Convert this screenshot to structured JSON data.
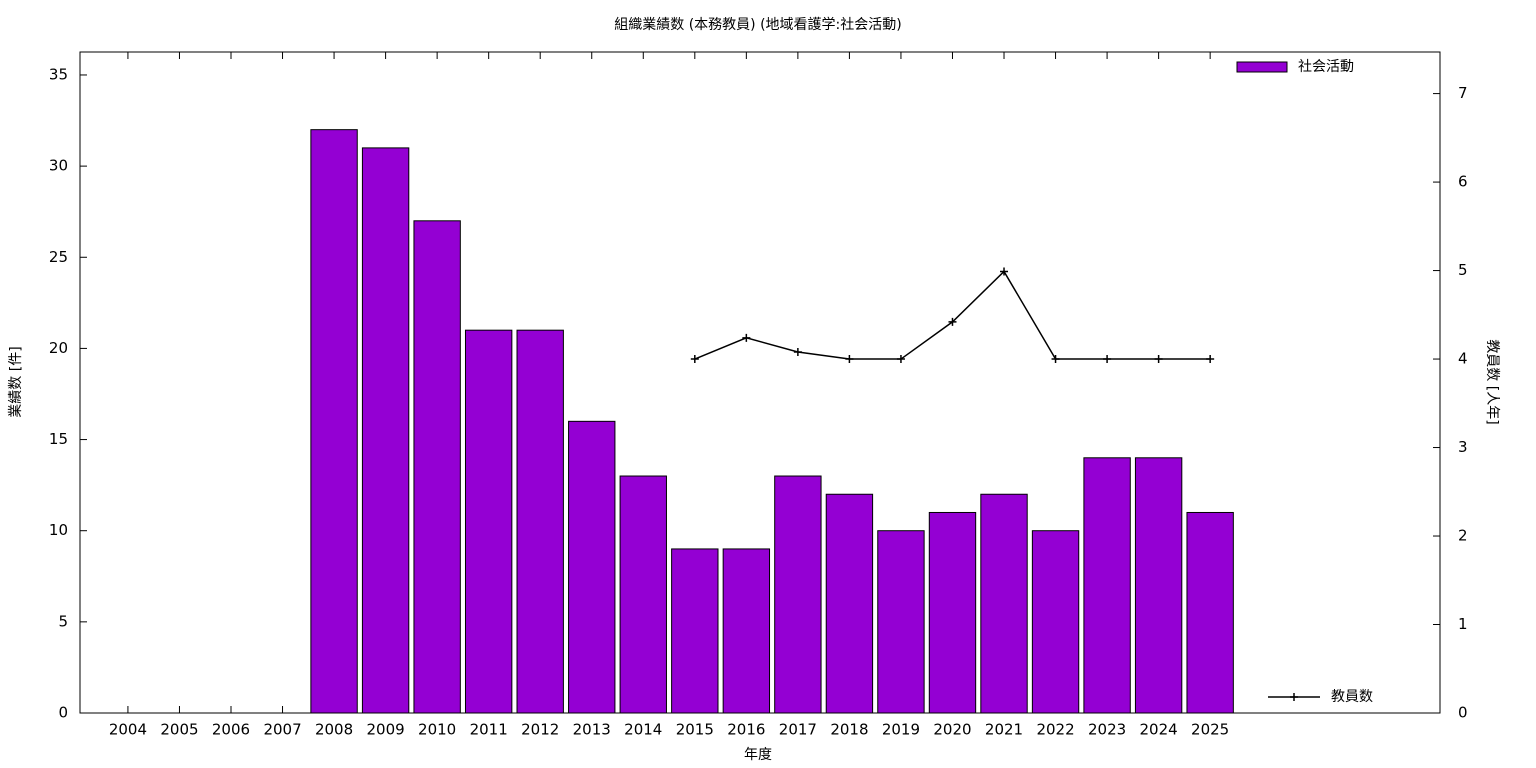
{
  "chart_data": {
    "type": "bar",
    "title": "組織業績数 (本務教員) (地域看護学:社会活動)",
    "x_label": "年度",
    "y_label": "業績数 [件]",
    "y2_label": "教員数 [人年]",
    "x": [
      2004,
      2005,
      2006,
      2007,
      2008,
      2009,
      2010,
      2011,
      2012,
      2013,
      2014,
      2015,
      2016,
      2017,
      2018,
      2019,
      2020,
      2021,
      2022,
      2023,
      2024,
      2025
    ],
    "xlim": [
      2003.07,
      2029.46
    ],
    "xticks": [
      2004,
      2005,
      2006,
      2007,
      2008,
      2009,
      2010,
      2011,
      2012,
      2013,
      2014,
      2015,
      2016,
      2017,
      2018,
      2019,
      2020,
      2021,
      2022,
      2023,
      2024,
      2025
    ],
    "ylim": [
      0,
      36.26
    ],
    "yticks": [
      0,
      5,
      10,
      15,
      20,
      25,
      30,
      35
    ],
    "y2lim": [
      0,
      7.47
    ],
    "y2ticks": [
      0,
      1,
      2,
      3,
      4,
      5,
      6,
      7
    ],
    "series": [
      {
        "name": "社会活動",
        "type": "bar",
        "color": "#9400d3",
        "legend": "top-right",
        "values": [
          null,
          null,
          null,
          null,
          32,
          31,
          27,
          21,
          21,
          16,
          13,
          9,
          9,
          13,
          12,
          10,
          11,
          12,
          10,
          14,
          14,
          11
        ]
      },
      {
        "name": "教員数",
        "type": "line",
        "axis": "y2",
        "color": "#000000",
        "legend": "bottom-right",
        "values": [
          null,
          null,
          null,
          null,
          null,
          null,
          null,
          null,
          null,
          null,
          null,
          4,
          4.24,
          4.08,
          4,
          4,
          4.42,
          4.99,
          4,
          4,
          4,
          4
        ]
      }
    ]
  }
}
